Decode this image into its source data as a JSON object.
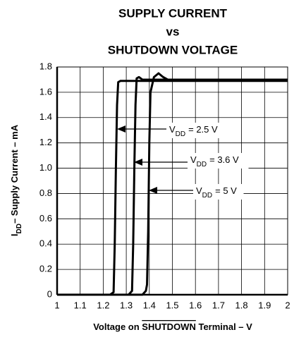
{
  "chart_data": {
    "type": "line",
    "title": [
      "SUPPLY CURRENT",
      "vs",
      "SHUTDOWN VOLTAGE"
    ],
    "x_label": {
      "before": "Voltage on",
      "overline": "SHUTDOWN",
      "after": "Terminal – V"
    },
    "y_label": {
      "main": "I",
      "sub": "DD",
      "rest": "– Supply Current – mA"
    },
    "xlim": [
      1,
      2
    ],
    "ylim": [
      0,
      1.8
    ],
    "xticks": [
      1,
      1.1,
      1.2,
      1.3,
      1.4,
      1.5,
      1.6,
      1.7,
      1.8,
      1.9,
      2
    ],
    "yticks": [
      0,
      0.2,
      0.4,
      0.6,
      {
        "value": 0.8,
        "label": "0.8"
      },
      {
        "value": 1,
        "label": "1.0"
      },
      1.2,
      1.4,
      1.6,
      1.8
    ],
    "grid": true,
    "series": [
      {
        "color": "#000000",
        "x": [
          1,
          1.23,
          1.245,
          1.25,
          1.255,
          1.26,
          1.265,
          1.275,
          2
        ],
        "values": [
          0,
          0,
          0.02,
          0.4,
          1.0,
          1.5,
          1.68,
          1.69,
          1.69
        ]
      },
      {
        "color": "#000000",
        "x": [
          1,
          1.31,
          1.325,
          1.33,
          1.335,
          1.34,
          1.345,
          1.355,
          1.37,
          2
        ],
        "values": [
          0,
          0,
          0.03,
          0.4,
          1.0,
          1.5,
          1.71,
          1.72,
          1.7,
          1.7
        ]
      },
      {
        "color": "#000000",
        "x": [
          1,
          1.37,
          1.385,
          1.39,
          1.395,
          1.4,
          1.405,
          1.42,
          1.44,
          1.46,
          1.48,
          2
        ],
        "values": [
          0,
          0,
          0.03,
          0.08,
          0.5,
          1.2,
          1.6,
          1.72,
          1.75,
          1.72,
          1.7,
          1.7
        ]
      }
    ],
    "annotations": [
      {
        "main": "V",
        "sub": "DD",
        "rest": "= 2.5 V"
      },
      {
        "main": "V",
        "sub": "DD",
        "rest": "= 3.6 V"
      },
      {
        "main": "V",
        "sub": "DD",
        "rest": "= 5 V"
      }
    ]
  }
}
